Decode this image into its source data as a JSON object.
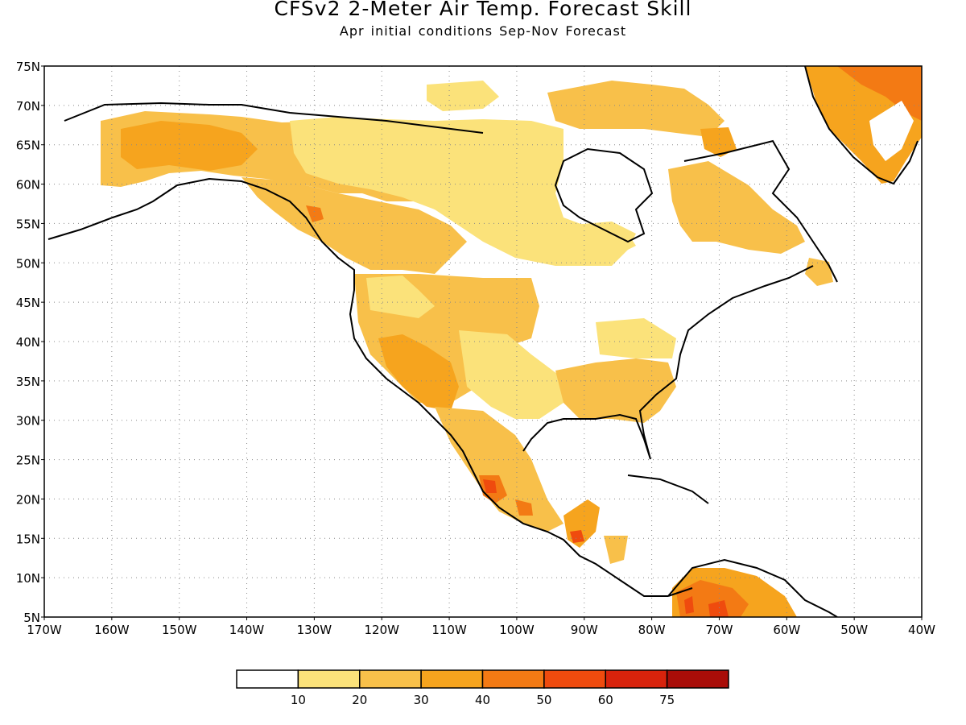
{
  "title": "CFSv2 2-Meter Air Temp. Forecast Skill",
  "subtitle": "Apr initial conditions  Sep-Nov Forecast",
  "map": {
    "lon_range": [
      -170,
      -40
    ],
    "lat_range": [
      5,
      75
    ],
    "lon_ticks": [
      "170W",
      "160W",
      "150W",
      "140W",
      "130W",
      "120W",
      "110W",
      "100W",
      "90W",
      "80W",
      "70W",
      "60W",
      "50W",
      "40W"
    ],
    "lat_ticks": [
      "5N",
      "10N",
      "15N",
      "20N",
      "25N",
      "30N",
      "35N",
      "40N",
      "45N",
      "50N",
      "55N",
      "60N",
      "65N",
      "70N",
      "75N"
    ],
    "gridlines": "dotted"
  },
  "colorbar": {
    "colors": [
      "#ffffff",
      "#fbe27a",
      "#f8c04a",
      "#f6a41e",
      "#f37a14",
      "#ef4b0e",
      "#d8230c",
      "#a90d08"
    ],
    "labels": [
      "10",
      "20",
      "30",
      "40",
      "50",
      "60",
      "75"
    ]
  },
  "colors": {
    "c10": "#fbe27a",
    "c20": "#f8c04a",
    "c30": "#f6a41e",
    "c40": "#f37a14",
    "c50": "#ef4b0e",
    "c60": "#d8230c"
  }
}
